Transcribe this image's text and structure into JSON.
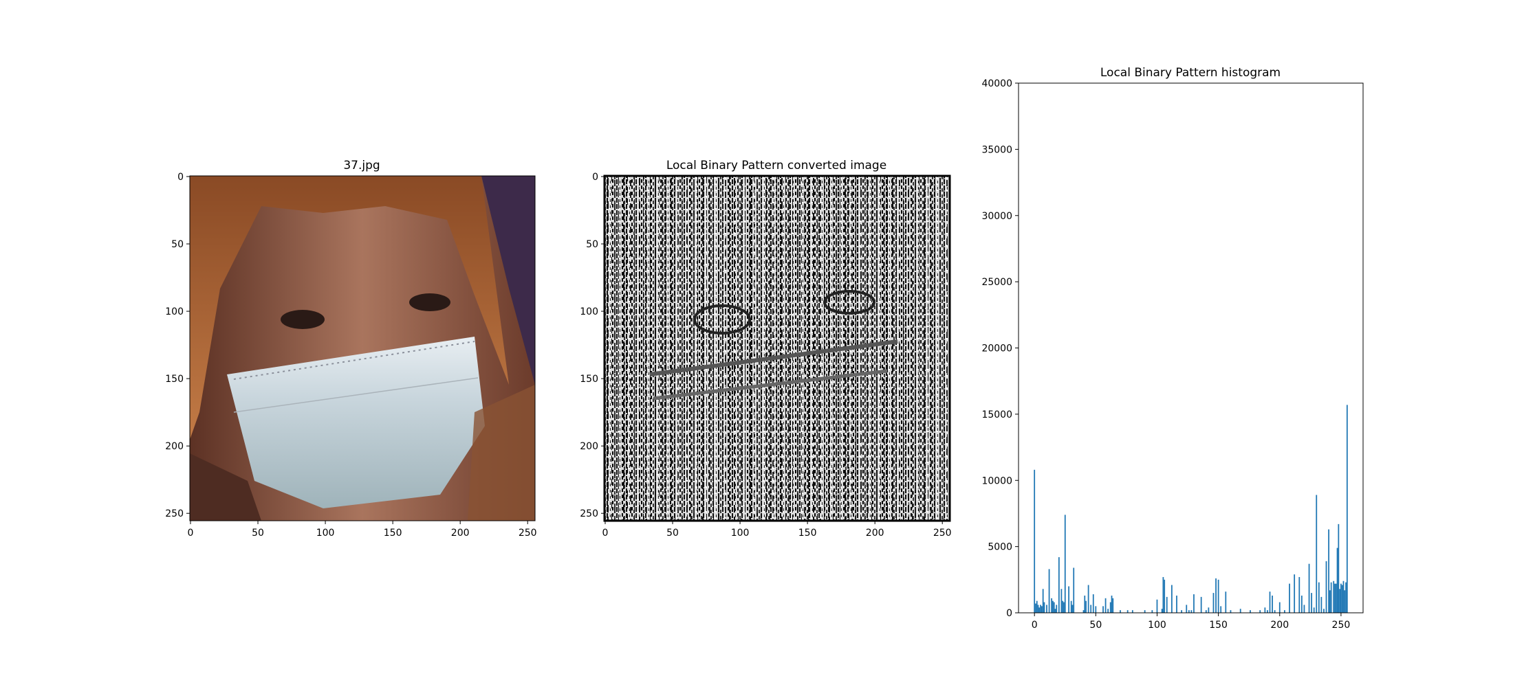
{
  "chart_data": [
    {
      "type": "image",
      "title": "37.jpg",
      "xticks": [
        0,
        50,
        100,
        150,
        200,
        250
      ],
      "yticks": [
        0,
        50,
        100,
        150,
        200,
        250
      ],
      "xlim": [
        -0.5,
        255.5
      ],
      "ylim": [
        255.5,
        -0.5
      ],
      "content": "face-with-surgical-mask-photo"
    },
    {
      "type": "image",
      "title": "Local Binary Pattern converted image",
      "xticks": [
        0,
        50,
        100,
        150,
        200,
        250
      ],
      "yticks": [
        0,
        50,
        100,
        150,
        200,
        250
      ],
      "xlim": [
        -0.5,
        255.5
      ],
      "ylim": [
        255.5,
        -0.5
      ],
      "content": "lbp-texture-grayscale"
    },
    {
      "type": "bar",
      "title": "Local Binary Pattern histogram",
      "xticks": [
        0,
        50,
        100,
        150,
        200,
        250
      ],
      "yticks": [
        0,
        5000,
        10000,
        15000,
        20000,
        25000,
        30000,
        35000,
        40000
      ],
      "xlim": [
        -13,
        268
      ],
      "ylim": [
        0,
        40000
      ],
      "bar_color": "#1f77b4",
      "x": [
        0,
        1,
        2,
        3,
        4,
        5,
        6,
        7,
        8,
        10,
        12,
        14,
        15,
        16,
        17,
        18,
        20,
        22,
        23,
        24,
        25,
        28,
        30,
        31,
        32,
        40,
        41,
        42,
        44,
        46,
        48,
        50,
        56,
        58,
        60,
        62,
        63,
        64,
        70,
        76,
        80,
        90,
        96,
        100,
        104,
        105,
        106,
        108,
        112,
        116,
        120,
        124,
        126,
        128,
        130,
        136,
        140,
        142,
        146,
        148,
        150,
        152,
        156,
        160,
        168,
        176,
        184,
        188,
        190,
        192,
        194,
        196,
        200,
        204,
        208,
        212,
        216,
        218,
        220,
        224,
        226,
        228,
        230,
        232,
        234,
        236,
        238,
        240,
        241,
        242,
        244,
        245,
        246,
        247,
        248,
        249,
        250,
        251,
        252,
        253,
        254,
        255
      ],
      "values": [
        10800,
        700,
        900,
        600,
        400,
        600,
        500,
        1800,
        800,
        600,
        3300,
        1100,
        900,
        800,
        300,
        600,
        4200,
        1800,
        900,
        800,
        7400,
        2000,
        900,
        600,
        3400,
        200,
        1300,
        900,
        2100,
        600,
        1400,
        500,
        500,
        1100,
        300,
        800,
        1300,
        1100,
        200,
        200,
        200,
        200,
        200,
        1000,
        300,
        2700,
        2500,
        1200,
        2100,
        1300,
        200,
        600,
        200,
        200,
        1400,
        1200,
        200,
        400,
        1500,
        2600,
        2500,
        500,
        1600,
        200,
        300,
        200,
        200,
        400,
        200,
        1600,
        1300,
        200,
        800,
        200,
        2200,
        2900,
        2700,
        1300,
        600,
        3700,
        1500,
        400,
        8900,
        2300,
        1200,
        300,
        3900,
        6300,
        1700,
        2300,
        2400,
        2200,
        2200,
        4900,
        6700,
        1800,
        2200,
        2100,
        2400,
        1700,
        2300,
        15700
      ]
    }
  ]
}
